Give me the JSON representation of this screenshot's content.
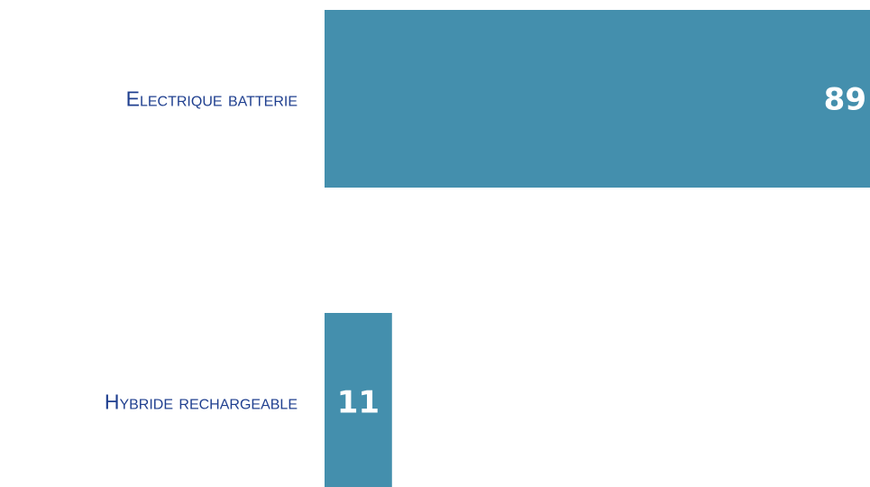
{
  "chart_data": {
    "type": "bar",
    "orientation": "horizontal",
    "categories": [
      "Electrique batterie",
      "Hybride rechargeable"
    ],
    "values": [
      89,
      11
    ],
    "value_labels": [
      "89",
      "11"
    ],
    "xlim": [
      0,
      89
    ],
    "grid": false,
    "legend": "none",
    "bar_color": "#448fad",
    "label_color": "#1f3f8f",
    "value_label_color": "#ffffff"
  }
}
